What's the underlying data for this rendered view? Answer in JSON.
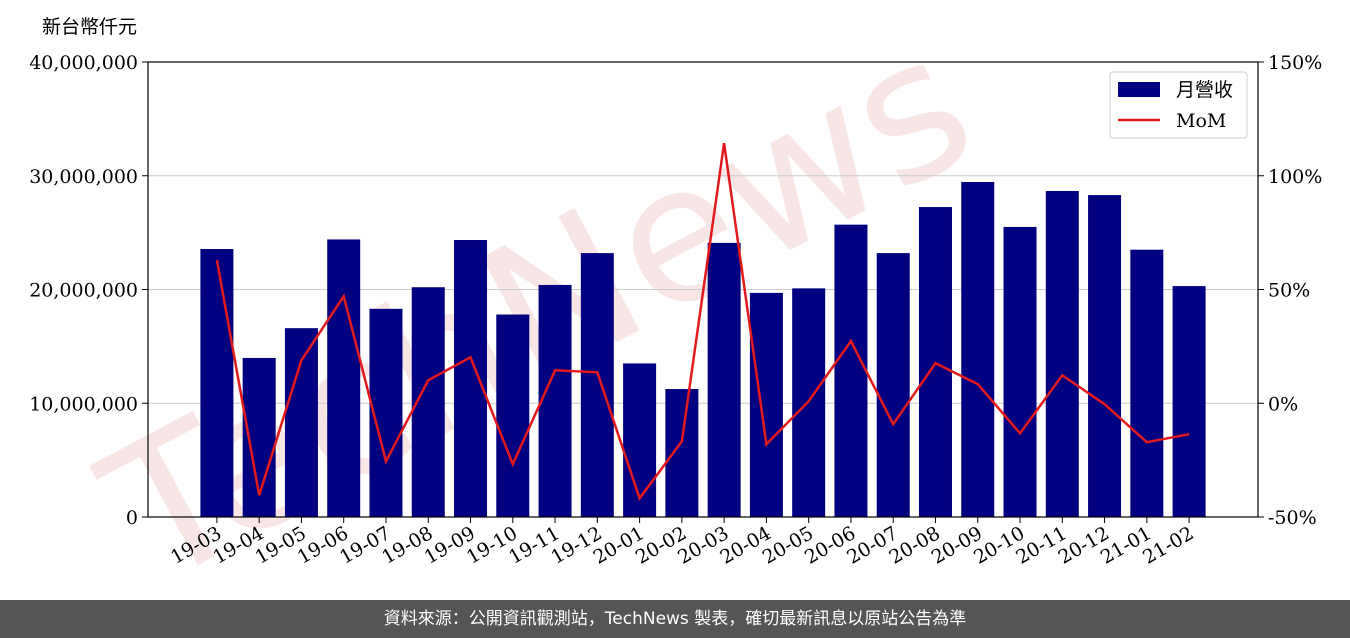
{
  "chart_data": {
    "type": "bar",
    "watermark": "TechNews",
    "y_label": "新台幣仟元",
    "categories": [
      "19-03",
      "19-04",
      "19-05",
      "19-06",
      "19-07",
      "19-08",
      "19-09",
      "19-10",
      "19-11",
      "19-12",
      "20-01",
      "20-02",
      "20-03",
      "20-04",
      "20-05",
      "20-06",
      "20-07",
      "20-08",
      "20-09",
      "20-10",
      "20-11",
      "20-12",
      "21-01",
      "21-02"
    ],
    "series": [
      {
        "name": "月營收",
        "type": "bar",
        "color": "#000080",
        "values": [
          23560000,
          13980000,
          16600000,
          24400000,
          18300000,
          20200000,
          24350000,
          17800000,
          20400000,
          23200000,
          13500000,
          11250000,
          24100000,
          19700000,
          20100000,
          25700000,
          23200000,
          27250000,
          29450000,
          25500000,
          28660000,
          28300000,
          23500000,
          20300000
        ]
      },
      {
        "name": "MoM",
        "type": "line",
        "axis": "y2",
        "color": "#e31a1c",
        "values": [
          62.9,
          -40.4,
          18.9,
          47,
          -25.5,
          10.1,
          20.2,
          -26.8,
          14.5,
          13.6,
          -41.8,
          -16.7,
          114.3,
          -18,
          0.9,
          27.3,
          -9.2,
          17.6,
          8.4,
          -13.2,
          12.3,
          -0.4,
          -17.1,
          -13.6
        ]
      }
    ],
    "ylim": [
      0,
      40000000
    ],
    "yticks": [
      0,
      {
        "value": 10000000,
        "label": "10,000,000"
      },
      {
        "value": 20000000,
        "label": "20,000,000"
      },
      {
        "value": 30000000,
        "label": "30,000,000"
      },
      {
        "value": 40000000,
        "label": "40,000,000"
      }
    ],
    "y2lim": [
      -50,
      150
    ],
    "y2ticks": [
      {
        "value": -50,
        "label": "-50%"
      },
      {
        "value": 0,
        "label": "0%"
      },
      {
        "value": 50,
        "label": "50%"
      },
      {
        "value": 100,
        "label": "100%"
      },
      {
        "value": 150,
        "label": "150%"
      }
    ],
    "grid": true,
    "legend": "upper right",
    "footer": "資料來源：公開資訊觀測站，TechNews 製表，確切最新訊息以原站公告為準"
  }
}
